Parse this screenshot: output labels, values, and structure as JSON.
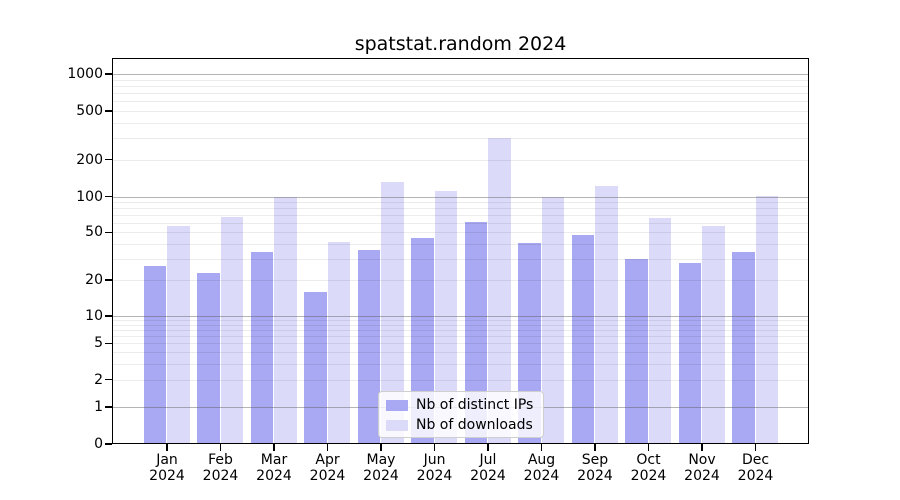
{
  "title": "spatstat.random 2024",
  "legend": {
    "items": [
      {
        "label": "Nb of distinct IPs",
        "color": "#a8a8f3"
      },
      {
        "label": "Nb of downloads",
        "color": "#dbdbf9"
      }
    ]
  },
  "chart_data": {
    "type": "bar",
    "title": "spatstat.random 2024",
    "categories": [
      "Jan",
      "Feb",
      "Mar",
      "Apr",
      "May",
      "Jun",
      "Jul",
      "Aug",
      "Sep",
      "Oct",
      "Nov",
      "Dec"
    ],
    "category_year": "2024",
    "series": [
      {
        "name": "Nb of distinct IPs",
        "color": "#a8a8f3",
        "values": [
          26,
          23,
          34,
          16,
          36,
          45,
          61,
          41,
          48,
          30,
          28,
          34
        ]
      },
      {
        "name": "Nb of downloads",
        "color": "#dbdbf9",
        "values": [
          57,
          67,
          100,
          42,
          131,
          110,
          300,
          100,
          122,
          66,
          57,
          101
        ]
      }
    ],
    "xlabel": "",
    "ylabel": "",
    "yscale": "pseudo-log",
    "yticks": [
      0,
      1,
      2,
      5,
      10,
      20,
      50,
      100,
      200,
      500,
      1000
    ],
    "ylim": [
      0,
      1400
    ],
    "grid": true,
    "legend_position": "lower center"
  }
}
